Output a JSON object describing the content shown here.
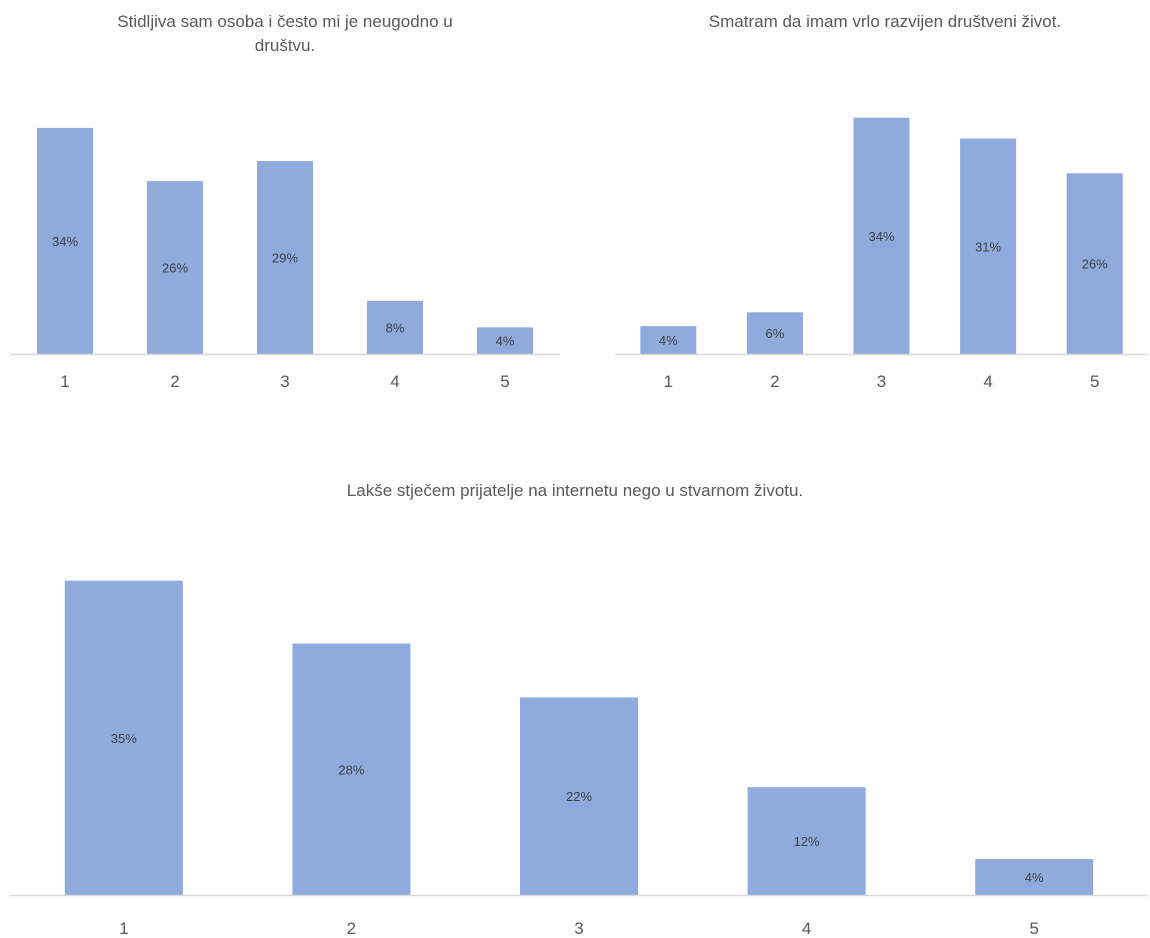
{
  "chart_data": [
    {
      "type": "bar",
      "title_lines": [
        "Stidljiva sam osoba i često mi je  neugodno u",
        "društvu."
      ],
      "categories": [
        "1",
        "2",
        "3",
        "4",
        "5"
      ],
      "values": [
        34,
        26,
        29,
        8,
        4
      ],
      "data_labels": [
        "34%",
        "26%",
        "29%",
        "8%",
        "4%"
      ],
      "unit": "%",
      "bar_color": "#8FAADC",
      "axis_color": "#D9D9D9",
      "grid": false,
      "legend": "none"
    },
    {
      "type": "bar",
      "title_lines": [
        "Smatram da imam vrlo razvijen društveni život."
      ],
      "categories": [
        "1",
        "2",
        "3",
        "4",
        "5"
      ],
      "values": [
        4,
        6,
        34,
        31,
        26
      ],
      "data_labels": [
        "4%",
        "6%",
        "34%",
        "31%",
        "26%"
      ],
      "unit": "%",
      "bar_color": "#8FAADC",
      "axis_color": "#D9D9D9",
      "grid": false,
      "legend": "none"
    },
    {
      "type": "bar",
      "title_lines": [
        "Lakše stječem prijatelje na internetu nego u stvarnom životu."
      ],
      "categories": [
        "1",
        "2",
        "3",
        "4",
        "5"
      ],
      "values": [
        35,
        28,
        22,
        12,
        4
      ],
      "data_labels": [
        "35%",
        "28%",
        "22%",
        "12%",
        "4%"
      ],
      "unit": "%",
      "bar_color": "#8FAADC",
      "axis_color": "#D9D9D9",
      "grid": false,
      "legend": "none"
    }
  ]
}
